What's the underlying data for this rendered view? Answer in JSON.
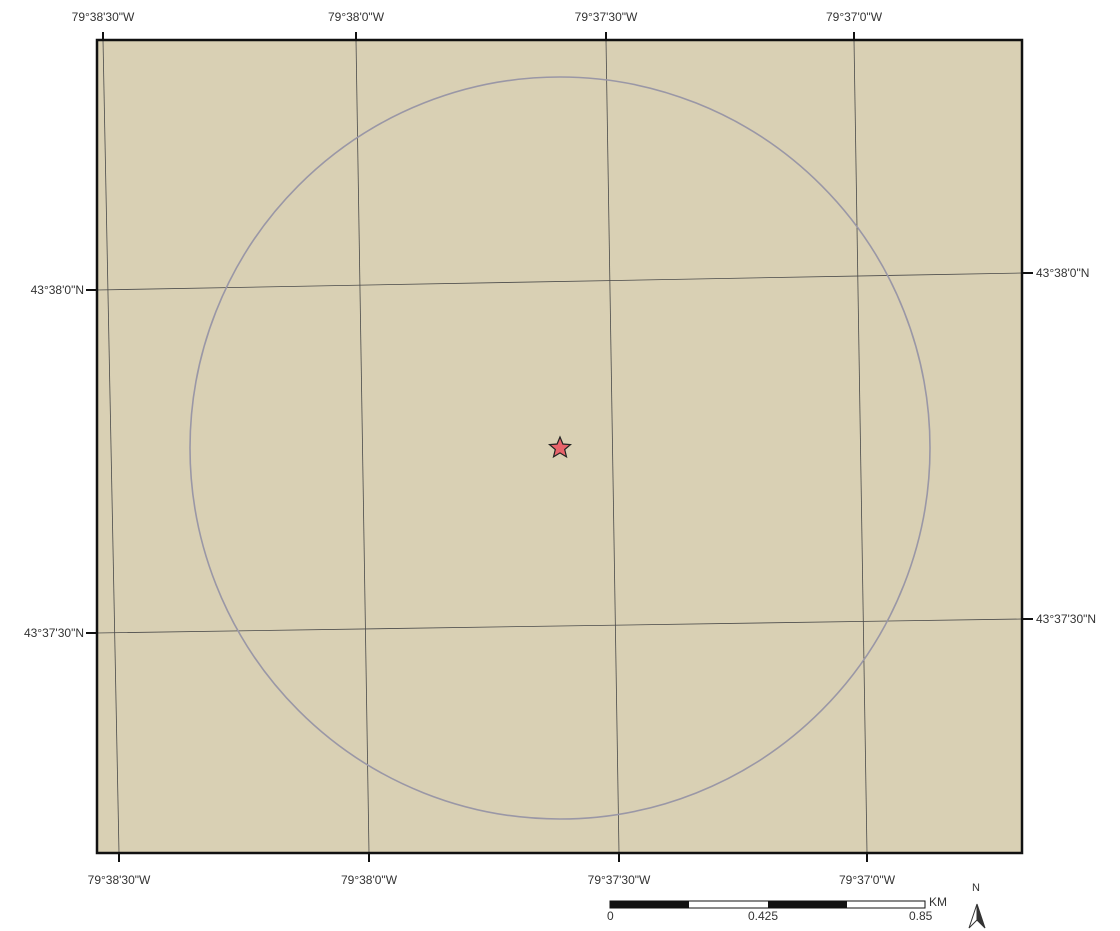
{
  "map": {
    "frame_color": "#111111",
    "background_color": "#d9d0b4",
    "graticule_color": "#4a4a4a",
    "buffer_circle_color": "#9a97a6",
    "site_marker": {
      "icon": "star-icon",
      "fill": "#e8636b",
      "stroke": "#222222"
    }
  },
  "graticule": {
    "lon_top_labels": [
      "79°38'30\"W",
      "79°38'0\"W",
      "79°37'30\"W",
      "79°37'0\"W"
    ],
    "lon_bottom_labels": [
      "79°38'30\"W",
      "79°38'0\"W",
      "79°37'30\"W",
      "79°37'0\"W"
    ],
    "lat_left_labels": [
      "43°38'0\"N",
      "43°37'30\"N"
    ],
    "lat_right_labels": [
      "43°38'0\"N",
      "43°37'30\"N"
    ]
  },
  "scale_bar": {
    "unit": "KM",
    "labels": [
      "0",
      "0.425",
      "0.85"
    ]
  },
  "north_arrow": {
    "label": "N",
    "icon": "north-arrow-icon"
  }
}
